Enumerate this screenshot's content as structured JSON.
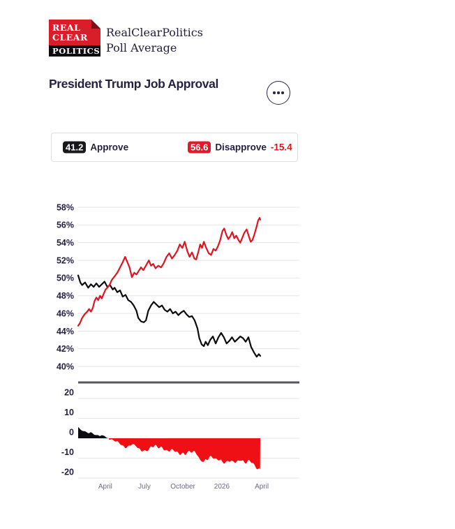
{
  "brand": {
    "logo": [
      "REAL",
      "CLEAR",
      "POLITICS"
    ],
    "title": "RealClearPolitics",
    "subtitle": "Poll Average"
  },
  "header": {
    "title": "President Trump Job Approval",
    "menu_icon": "ellipsis-icon"
  },
  "legend": {
    "approve": {
      "value": "41.2",
      "label": "Approve"
    },
    "disapprove": {
      "value": "56.6",
      "label": "Disapprove"
    },
    "spread": "-15.4"
  },
  "colors": {
    "approve_line": "#0c0c10",
    "disapprove_line": "#de1420",
    "approve_badge": "#17171c",
    "disapprove_badge": "#e4182a",
    "spread_negative_fill": "#ee1014",
    "spread_positive_fill": "#0c0c10",
    "spread_text": "#e01220",
    "grid": "#e5e4e9",
    "separator": "#55555e",
    "axis_text": "#272045",
    "x_axis_text": "#6c6884"
  },
  "chart_data": {
    "type": "line",
    "title": "President Trump Job Approval",
    "grid": true,
    "xticks": [
      {
        "label": "April",
        "t": 0.149
      },
      {
        "label": "July",
        "t": 0.364
      },
      {
        "label": "October",
        "t": 0.575
      },
      {
        "label": "2026",
        "t": 0.789
      },
      {
        "label": "April",
        "t": 1.008
      }
    ],
    "panels": {
      "approval": {
        "unit": "percent",
        "yticks": [
          {
            "v": 58,
            "label": "58%"
          },
          {
            "v": 56,
            "label": "56%"
          },
          {
            "v": 54,
            "label": "54%"
          },
          {
            "v": 52,
            "label": "52%"
          },
          {
            "v": 50,
            "label": "50%"
          },
          {
            "v": 48,
            "label": "48%"
          },
          {
            "v": 46,
            "label": "46%"
          },
          {
            "v": 44,
            "label": "44%"
          },
          {
            "v": 42,
            "label": "42%"
          },
          {
            "v": 40,
            "label": "40%"
          }
        ],
        "series": [
          {
            "name": "Approve",
            "current": 41.2,
            "points": [
              [
                0,
                50.3
              ],
              [
                0.012,
                49.5
              ],
              [
                0.022,
                49.2
              ],
              [
                0.038,
                49.5
              ],
              [
                0.055,
                48.9
              ],
              [
                0.07,
                49.3
              ],
              [
                0.085,
                49.0
              ],
              [
                0.1,
                49.4
              ],
              [
                0.115,
                49.0
              ],
              [
                0.13,
                49.3
              ],
              [
                0.145,
                49.6
              ],
              [
                0.16,
                49.0
              ],
              [
                0.175,
                49.2
              ],
              [
                0.19,
                48.7
              ],
              [
                0.2,
                48.9
              ],
              [
                0.215,
                48.4
              ],
              [
                0.23,
                48.6
              ],
              [
                0.245,
                47.9
              ],
              [
                0.26,
                48.1
              ],
              [
                0.275,
                47.5
              ],
              [
                0.29,
                47.3
              ],
              [
                0.305,
                46.9
              ],
              [
                0.32,
                46.3
              ],
              [
                0.33,
                45.5
              ],
              [
                0.345,
                45.1
              ],
              [
                0.36,
                45.0
              ],
              [
                0.372,
                45.2
              ],
              [
                0.385,
                46.3
              ],
              [
                0.4,
                46.9
              ],
              [
                0.415,
                47.3
              ],
              [
                0.43,
                47.0
              ],
              [
                0.445,
                46.7
              ],
              [
                0.46,
                46.9
              ],
              [
                0.475,
                46.4
              ],
              [
                0.49,
                46.2
              ],
              [
                0.505,
                46.5
              ],
              [
                0.52,
                46.0
              ],
              [
                0.535,
                46.2
              ],
              [
                0.55,
                45.8
              ],
              [
                0.565,
                46.1
              ],
              [
                0.58,
                46.3
              ],
              [
                0.595,
                45.9
              ],
              [
                0.61,
                45.6
              ],
              [
                0.625,
                45.7
              ],
              [
                0.64,
                45.2
              ],
              [
                0.655,
                44.3
              ],
              [
                0.665,
                43.2
              ],
              [
                0.678,
                42.5
              ],
              [
                0.69,
                42.3
              ],
              [
                0.7,
                42.8
              ],
              [
                0.712,
                42.4
              ],
              [
                0.725,
                43.0
              ],
              [
                0.74,
                43.4
              ],
              [
                0.755,
                42.6
              ],
              [
                0.77,
                43.3
              ],
              [
                0.785,
                43.8
              ],
              [
                0.8,
                43.3
              ],
              [
                0.815,
                42.6
              ],
              [
                0.83,
                42.9
              ],
              [
                0.845,
                43.3
              ],
              [
                0.86,
                42.8
              ],
              [
                0.875,
                43.1
              ],
              [
                0.89,
                43.4
              ],
              [
                0.905,
                43.2
              ],
              [
                0.92,
                42.8
              ],
              [
                0.935,
                43.3
              ],
              [
                0.95,
                42.2
              ],
              [
                0.965,
                41.6
              ],
              [
                0.98,
                41.1
              ],
              [
                0.992,
                41.4
              ],
              [
                1,
                41.2
              ]
            ]
          },
          {
            "name": "Disapprove",
            "current": 56.6,
            "points": [
              [
                0,
                44.6
              ],
              [
                0.01,
                44.9
              ],
              [
                0.02,
                45.4
              ],
              [
                0.035,
                45.9
              ],
              [
                0.05,
                46.2
              ],
              [
                0.06,
                46.5
              ],
              [
                0.07,
                46.2
              ],
              [
                0.08,
                46.6
              ],
              [
                0.09,
                47.4
              ],
              [
                0.1,
                47.8
              ],
              [
                0.11,
                47.5
              ],
              [
                0.12,
                48.0
              ],
              [
                0.13,
                47.7
              ],
              [
                0.14,
                48.2
              ],
              [
                0.15,
                48.7
              ],
              [
                0.16,
                48.9
              ],
              [
                0.172,
                49.2
              ],
              [
                0.185,
                49.8
              ],
              [
                0.2,
                50.2
              ],
              [
                0.215,
                50.6
              ],
              [
                0.23,
                51.2
              ],
              [
                0.245,
                51.8
              ],
              [
                0.258,
                52.4
              ],
              [
                0.27,
                51.8
              ],
              [
                0.282,
                51.2
              ],
              [
                0.295,
                50.1
              ],
              [
                0.308,
                50.6
              ],
              [
                0.32,
                50.4
              ],
              [
                0.332,
                50.8
              ],
              [
                0.345,
                51.2
              ],
              [
                0.358,
                50.9
              ],
              [
                0.372,
                51.4
              ],
              [
                0.388,
                52.0
              ],
              [
                0.4,
                51.4
              ],
              [
                0.412,
                51.6
              ],
              [
                0.425,
                51.1
              ],
              [
                0.44,
                51.4
              ],
              [
                0.455,
                51.2
              ],
              [
                0.47,
                51.7
              ],
              [
                0.485,
                52.4
              ],
              [
                0.5,
                52.8
              ],
              [
                0.515,
                52.2
              ],
              [
                0.53,
                52.6
              ],
              [
                0.545,
                53.1
              ],
              [
                0.558,
                53.8
              ],
              [
                0.572,
                53.4
              ],
              [
                0.585,
                54.1
              ],
              [
                0.6,
                53.0
              ],
              [
                0.612,
                52.4
              ],
              [
                0.625,
                52.9
              ],
              [
                0.638,
                52.2
              ],
              [
                0.648,
                52.1
              ],
              [
                0.66,
                53.0
              ],
              [
                0.67,
                53.8
              ],
              [
                0.68,
                53.4
              ],
              [
                0.69,
                54.1
              ],
              [
                0.703,
                53.4
              ],
              [
                0.717,
                52.8
              ],
              [
                0.73,
                52.6
              ],
              [
                0.743,
                53.3
              ],
              [
                0.755,
                53.1
              ],
              [
                0.768,
                53.6
              ],
              [
                0.78,
                54.3
              ],
              [
                0.792,
                55.3
              ],
              [
                0.802,
                55.6
              ],
              [
                0.813,
                54.9
              ],
              [
                0.824,
                54.4
              ],
              [
                0.835,
                54.7
              ],
              [
                0.846,
                55.2
              ],
              [
                0.857,
                54.5
              ],
              [
                0.868,
                54.8
              ],
              [
                0.88,
                54.3
              ],
              [
                0.89,
                54.0
              ],
              [
                0.9,
                54.5
              ],
              [
                0.912,
                55.1
              ],
              [
                0.925,
                55.5
              ],
              [
                0.936,
                54.8
              ],
              [
                0.947,
                54.1
              ],
              [
                0.957,
                54.3
              ],
              [
                0.967,
                54.9
              ],
              [
                0.978,
                55.7
              ],
              [
                0.988,
                56.5
              ],
              [
                0.996,
                56.8
              ],
              [
                1,
                56.6
              ]
            ]
          }
        ]
      },
      "spread": {
        "derived_from": "Approve minus Disapprove",
        "current": -15.4,
        "yticks": [
          {
            "v": 20,
            "label": "20"
          },
          {
            "v": 10,
            "label": "10"
          },
          {
            "v": 0,
            "label": "0"
          },
          {
            "v": -10,
            "label": "-10"
          },
          {
            "v": -20,
            "label": "-20"
          }
        ]
      }
    }
  }
}
